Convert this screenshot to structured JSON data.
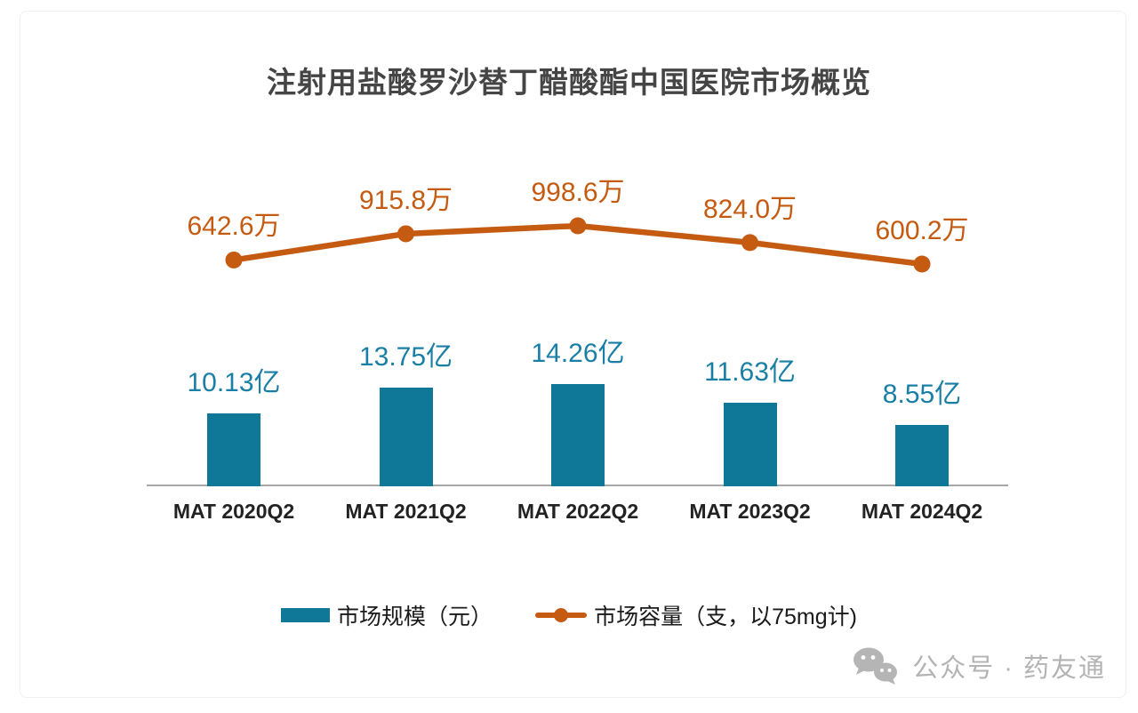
{
  "title": "注射用盐酸罗沙替丁醋酸酯中国医院市场概览",
  "chart_data": {
    "type": "combo",
    "title": "注射用盐酸罗沙替丁醋酸酯中国医院市场概览",
    "categories": [
      "MAT 2020Q2",
      "MAT 2021Q2",
      "MAT 2022Q2",
      "MAT 2023Q2",
      "MAT 2024Q2"
    ],
    "series": [
      {
        "name": "市场规模（元）",
        "type": "bar",
        "unit": "亿",
        "values": [
          10.13,
          13.75,
          14.26,
          11.63,
          8.55
        ],
        "labels": [
          "10.13亿",
          "13.75亿",
          "14.26亿",
          "11.63亿",
          "8.55亿"
        ],
        "color": "#0f7898"
      },
      {
        "name": "市场容量（支，以75mg计)",
        "type": "line",
        "unit": "万",
        "values": [
          642.6,
          915.8,
          998.6,
          824.0,
          600.2
        ],
        "labels": [
          "642.6万",
          "915.8万",
          "998.6万",
          "824.0万",
          "600.2万"
        ],
        "color": "#c55a11"
      }
    ],
    "legend_position": "bottom",
    "axes": "y-axes hidden; only gray x baseline shown; data labels above points and bars"
  },
  "legend": {
    "bar_label": "市场规模（元）",
    "line_label": "市场容量（支，以75mg计)"
  },
  "watermark": {
    "icon": "wechat-icon",
    "text": "公众号 · 药友通"
  },
  "colors": {
    "bar": "#0f7898",
    "bar_label": "#1a7fa6",
    "line": "#c55a11",
    "title": "#454545",
    "axis": "#a8a8a8",
    "watermark": "#b3b3b3"
  }
}
